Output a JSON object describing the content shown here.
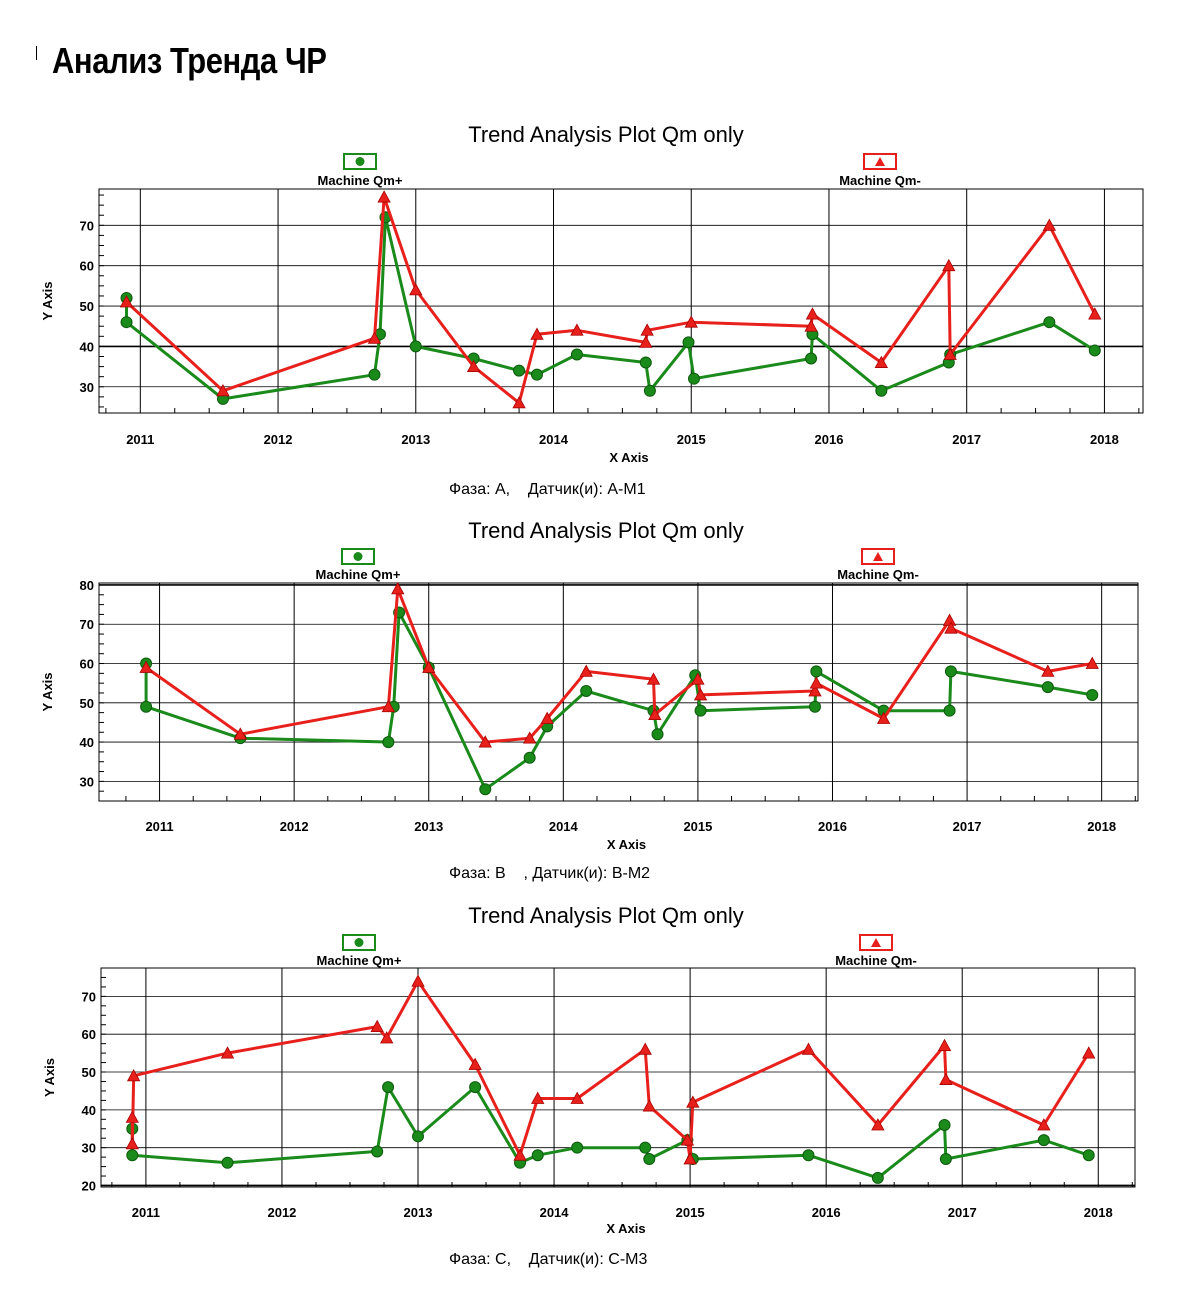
{
  "page_title": "Анализ Тренда ЧР",
  "chart_data": [
    {
      "type": "line",
      "title": "Trend Analysis Plot Qm only",
      "xlabel": "X Axis",
      "ylabel": "Y Axis",
      "xlim": [
        2010.7,
        2018.28
      ],
      "ylim": [
        23.5,
        79
      ],
      "xticks": [
        2011,
        2012,
        2013,
        2014,
        2015,
        2016,
        2017,
        2018
      ],
      "yticks": [
        30,
        40,
        50,
        60,
        70
      ],
      "major_y_line": 40,
      "grid": true,
      "legend_position": "top",
      "caption": "Фаза: А,    Датчик(и): А-М1",
      "series": [
        {
          "name": "Machine Qm+",
          "color": "#1a8a1a",
          "marker": "circle",
          "points": [
            [
              2010.9,
              52
            ],
            [
              2010.9,
              46
            ],
            [
              2011.6,
              27
            ],
            [
              2012.7,
              33
            ],
            [
              2012.74,
              43
            ],
            [
              2012.78,
              72
            ],
            [
              2013.0,
              40
            ],
            [
              2013.42,
              37
            ],
            [
              2013.75,
              34
            ],
            [
              2013.88,
              33
            ],
            [
              2014.17,
              38
            ],
            [
              2014.67,
              36
            ],
            [
              2014.7,
              29
            ],
            [
              2014.98,
              41
            ],
            [
              2015.02,
              32
            ],
            [
              2015.87,
              37
            ],
            [
              2015.88,
              43
            ],
            [
              2016.38,
              29
            ],
            [
              2016.87,
              36
            ],
            [
              2016.88,
              38
            ],
            [
              2017.6,
              46
            ],
            [
              2017.93,
              39
            ]
          ]
        },
        {
          "name": "Machine Qm-",
          "color": "#e8201c",
          "marker": "triangle",
          "points": [
            [
              2010.9,
              51
            ],
            [
              2011.6,
              29
            ],
            [
              2012.7,
              42
            ],
            [
              2012.77,
              77
            ],
            [
              2013.0,
              54
            ],
            [
              2013.42,
              35
            ],
            [
              2013.75,
              26
            ],
            [
              2013.88,
              43
            ],
            [
              2014.17,
              44
            ],
            [
              2014.67,
              41
            ],
            [
              2014.68,
              44
            ],
            [
              2015.0,
              46
            ],
            [
              2015.87,
              45
            ],
            [
              2015.88,
              48
            ],
            [
              2016.38,
              36
            ],
            [
              2016.87,
              60
            ],
            [
              2016.88,
              38
            ],
            [
              2017.6,
              70
            ],
            [
              2017.93,
              48
            ]
          ]
        }
      ]
    },
    {
      "type": "line",
      "title": "Trend Analysis Plot Qm only",
      "xlabel": "X Axis",
      "ylabel": "Y Axis",
      "xlim": [
        2010.55,
        2018.27
      ],
      "ylim": [
        25,
        80.5
      ],
      "xticks": [
        2011,
        2012,
        2013,
        2014,
        2015,
        2016,
        2017,
        2018
      ],
      "yticks": [
        30,
        40,
        50,
        60,
        70,
        80
      ],
      "major_y_line": 80,
      "grid": true,
      "legend_position": "top",
      "caption": "Фаза: В    , Датчик(и): В-М2",
      "series": [
        {
          "name": "Machine Qm+",
          "color": "#1a8a1a",
          "marker": "circle",
          "points": [
            [
              2010.9,
              60
            ],
            [
              2010.9,
              49
            ],
            [
              2011.6,
              41
            ],
            [
              2012.7,
              40
            ],
            [
              2012.74,
              49
            ],
            [
              2012.78,
              73
            ],
            [
              2013.0,
              59
            ],
            [
              2013.42,
              28
            ],
            [
              2013.75,
              36
            ],
            [
              2013.88,
              44
            ],
            [
              2014.17,
              53
            ],
            [
              2014.67,
              48
            ],
            [
              2014.7,
              42
            ],
            [
              2014.98,
              57
            ],
            [
              2015.02,
              48
            ],
            [
              2015.87,
              49
            ],
            [
              2015.88,
              58
            ],
            [
              2016.38,
              48
            ],
            [
              2016.87,
              48
            ],
            [
              2016.88,
              58
            ],
            [
              2017.6,
              54
            ],
            [
              2017.93,
              52
            ]
          ]
        },
        {
          "name": "Machine Qm-",
          "color": "#e8201c",
          "marker": "triangle",
          "points": [
            [
              2010.9,
              59
            ],
            [
              2011.6,
              42
            ],
            [
              2012.7,
              49
            ],
            [
              2012.77,
              79
            ],
            [
              2013.0,
              59
            ],
            [
              2013.42,
              40
            ],
            [
              2013.75,
              41
            ],
            [
              2013.88,
              46
            ],
            [
              2014.17,
              58
            ],
            [
              2014.67,
              56
            ],
            [
              2014.68,
              47
            ],
            [
              2015.0,
              56
            ],
            [
              2015.02,
              52
            ],
            [
              2015.87,
              53
            ],
            [
              2015.88,
              55
            ],
            [
              2016.38,
              46
            ],
            [
              2016.87,
              71
            ],
            [
              2016.88,
              69
            ],
            [
              2017.6,
              58
            ],
            [
              2017.93,
              60
            ]
          ]
        }
      ]
    },
    {
      "type": "line",
      "title": "Trend Analysis Plot Qm only",
      "xlabel": "X Axis",
      "ylabel": "Y Axis",
      "xlim": [
        2010.67,
        2018.27
      ],
      "ylim": [
        19.6,
        77.5
      ],
      "xticks": [
        2011,
        2012,
        2013,
        2014,
        2015,
        2016,
        2017,
        2018
      ],
      "yticks": [
        20,
        30,
        40,
        50,
        60,
        70
      ],
      "major_y_line": 20,
      "grid": true,
      "legend_position": "top",
      "caption": "Фаза: С,    Датчик(и): С-М3",
      "series": [
        {
          "name": "Machine Qm+",
          "color": "#1a8a1a",
          "marker": "circle",
          "points": [
            [
              2010.9,
              35
            ],
            [
              2010.9,
              28
            ],
            [
              2011.6,
              26
            ],
            [
              2012.7,
              29
            ],
            [
              2012.78,
              46
            ],
            [
              2013.0,
              33
            ],
            [
              2013.42,
              46
            ],
            [
              2013.75,
              26
            ],
            [
              2013.88,
              28
            ],
            [
              2014.17,
              30
            ],
            [
              2014.67,
              30
            ],
            [
              2014.7,
              27
            ],
            [
              2014.98,
              32
            ],
            [
              2015.02,
              27
            ],
            [
              2015.87,
              28
            ],
            [
              2016.38,
              22
            ],
            [
              2016.87,
              36
            ],
            [
              2016.88,
              27
            ],
            [
              2017.6,
              32
            ],
            [
              2017.93,
              28
            ]
          ]
        },
        {
          "name": "Machine Qm-",
          "color": "#e8201c",
          "marker": "triangle",
          "points": [
            [
              2010.9,
              38
            ],
            [
              2010.9,
              31
            ],
            [
              2010.91,
              49
            ],
            [
              2011.6,
              55
            ],
            [
              2012.7,
              62
            ],
            [
              2012.77,
              59
            ],
            [
              2013.0,
              74
            ],
            [
              2013.42,
              52
            ],
            [
              2013.75,
              28
            ],
            [
              2013.88,
              43
            ],
            [
              2014.17,
              43
            ],
            [
              2014.67,
              56
            ],
            [
              2014.7,
              41
            ],
            [
              2014.98,
              32
            ],
            [
              2015.0,
              27
            ],
            [
              2015.02,
              42
            ],
            [
              2015.87,
              56
            ],
            [
              2016.38,
              36
            ],
            [
              2016.87,
              57
            ],
            [
              2016.88,
              48
            ],
            [
              2017.6,
              36
            ],
            [
              2017.93,
              55
            ]
          ]
        }
      ]
    }
  ]
}
